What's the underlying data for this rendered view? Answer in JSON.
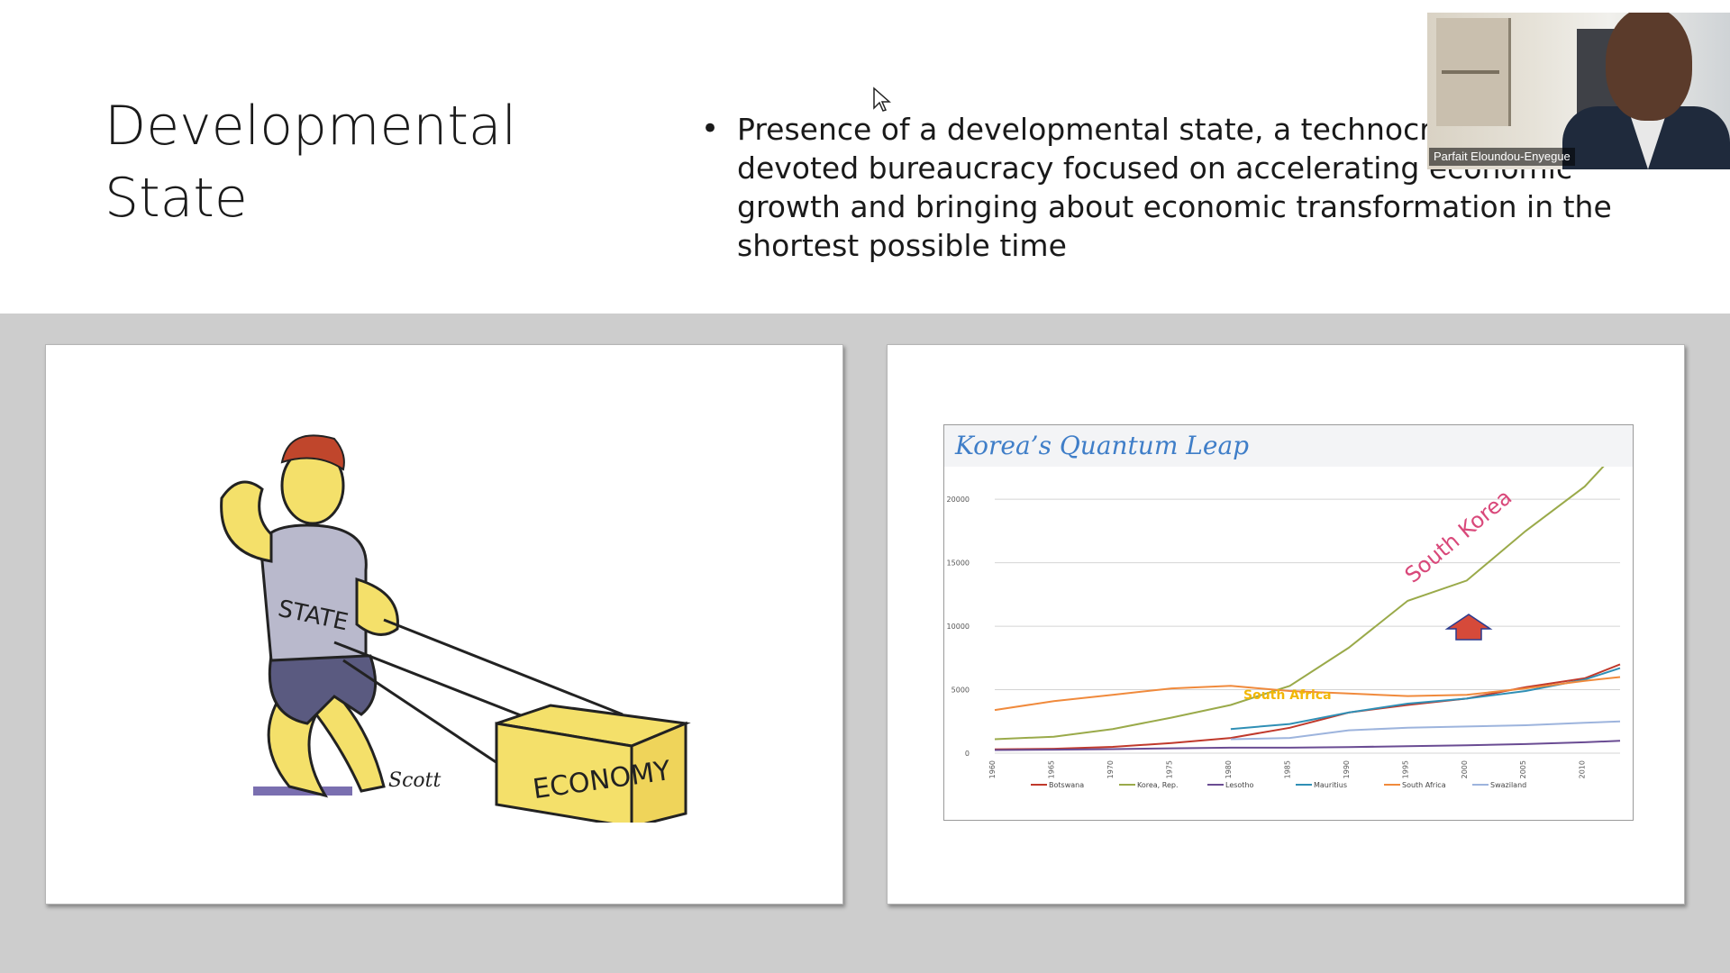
{
  "slide": {
    "title": "Developmental State",
    "bullet": "Presence of a developmental state, a technocratic and devoted bureaucracy focused on accelerating economic growth and bringing about economic transformation in the shortest possible time"
  },
  "video": {
    "participant_name": "Parfait Eloundou-Enyegue"
  },
  "cartoon": {
    "shirt_label": "STATE",
    "box_label": "ECONOMY",
    "signature": "Scott"
  },
  "chart_data": {
    "type": "line",
    "title": "Korea’s Quantum Leap",
    "xlabel": "",
    "ylabel": "",
    "x": [
      1960,
      1965,
      1970,
      1975,
      1980,
      1985,
      1990,
      1995,
      2000,
      2005,
      2010,
      2013
    ],
    "x_ticks": [
      "1960",
      "1965",
      "1970",
      "1975",
      "1980",
      "1985",
      "1990",
      "1995",
      "2000",
      "2005",
      "2010"
    ],
    "y_ticks": [
      "0",
      "5000",
      "10000",
      "15000",
      "20000"
    ],
    "ylim": [
      0,
      22000
    ],
    "grid": true,
    "legend_placement": "bottom",
    "series": [
      {
        "name": "Botswana",
        "color": "#c0392b",
        "values": [
          300,
          350,
          500,
          800,
          1200,
          2000,
          3200,
          3800,
          4300,
          5200,
          5900,
          7000
        ]
      },
      {
        "name": "Korea, Rep.",
        "color": "#9aaa4a",
        "values": [
          1100,
          1300,
          1900,
          2800,
          3800,
          5300,
          8300,
          12000,
          13600,
          17500,
          21000,
          24000
        ]
      },
      {
        "name": "Lesotho",
        "color": "#6a4c93",
        "values": [
          250,
          280,
          320,
          380,
          430,
          430,
          480,
          550,
          620,
          720,
          860,
          980
        ]
      },
      {
        "name": "Mauritius",
        "color": "#2f8fb5",
        "values": [
          null,
          null,
          null,
          null,
          1900,
          2300,
          3200,
          3900,
          4300,
          4900,
          5800,
          6700
        ]
      },
      {
        "name": "South Africa",
        "color": "#f08a3c",
        "values": [
          3400,
          4100,
          4600,
          5100,
          5300,
          4900,
          4700,
          4500,
          4600,
          5100,
          5700,
          6000
        ]
      },
      {
        "name": "Swaziland",
        "color": "#9db4dd",
        "values": [
          null,
          null,
          null,
          null,
          1100,
          1200,
          1800,
          2000,
          2100,
          2200,
          2400,
          2500
        ]
      }
    ],
    "annotations": [
      "South Korea",
      "South Africa"
    ],
    "colors": {
      "title": "#3f7ec8",
      "south_korea_label": "#d9487a",
      "south_africa_label": "#f2b705",
      "arrow": "#d64a3a"
    }
  }
}
